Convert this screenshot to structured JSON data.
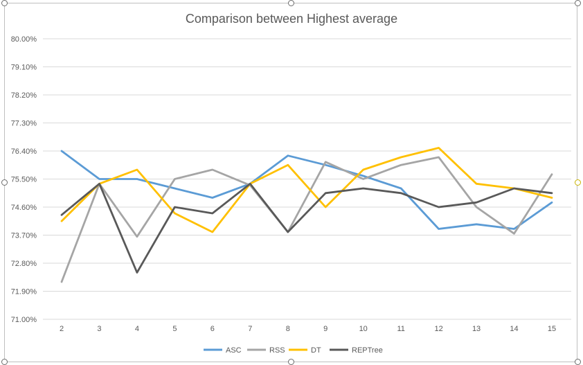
{
  "chart_data": {
    "type": "line",
    "title": "Comparison between Highest average",
    "xlabel": "",
    "ylabel": "",
    "x": [
      2,
      3,
      4,
      5,
      6,
      7,
      8,
      9,
      10,
      11,
      12,
      13,
      14,
      15
    ],
    "ylim": [
      71.0,
      80.0
    ],
    "yticks": [
      "80.00%",
      "79.10%",
      "78.20%",
      "77.30%",
      "76.40%",
      "75.50%",
      "74.60%",
      "73.70%",
      "72.80%",
      "71.90%",
      "71.00%"
    ],
    "ytick_values": [
      80.0,
      79.1,
      78.2,
      77.3,
      76.4,
      75.5,
      74.6,
      73.7,
      72.8,
      71.9,
      71.0
    ],
    "grid": true,
    "legend_position": "bottom",
    "series": [
      {
        "name": "ASC",
        "color": "#5b9bd5",
        "values": [
          76.4,
          75.5,
          75.5,
          75.2,
          74.9,
          75.35,
          76.25,
          75.95,
          75.6,
          75.2,
          73.9,
          74.05,
          73.9,
          74.75
        ]
      },
      {
        "name": "RSS",
        "color": "#a5a5a5",
        "values": [
          72.2,
          75.35,
          73.65,
          75.5,
          75.8,
          75.3,
          73.8,
          76.05,
          75.5,
          75.95,
          76.2,
          74.6,
          73.75,
          75.65
        ]
      },
      {
        "name": "DT",
        "color": "#ffc000",
        "values": [
          74.15,
          75.35,
          75.8,
          74.4,
          73.8,
          75.35,
          75.95,
          74.6,
          75.8,
          76.2,
          76.5,
          75.35,
          75.2,
          74.9
        ]
      },
      {
        "name": "REPTree",
        "color": "#595959",
        "values": [
          74.35,
          75.35,
          72.5,
          74.6,
          74.4,
          75.35,
          73.8,
          75.05,
          75.2,
          75.05,
          74.6,
          74.75,
          75.2,
          75.05
        ]
      }
    ]
  }
}
